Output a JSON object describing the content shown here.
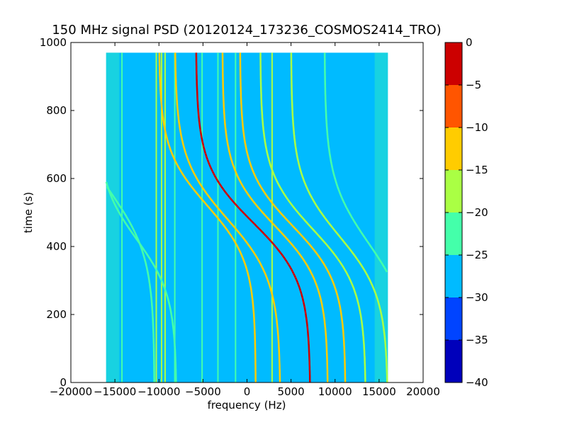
{
  "chart_data": {
    "type": "heatmap",
    "title": "150 MHz signal PSD (20120124_173236_COSMOS2414_TRO)",
    "xlabel": "frequency (Hz)",
    "ylabel": "time (s)",
    "xlim": [
      -20000,
      20000
    ],
    "ylim": [
      0,
      1000
    ],
    "xticks": [
      -20000,
      -15000,
      -10000,
      -5000,
      0,
      5000,
      10000,
      15000,
      20000
    ],
    "xtick_labels": [
      "−20000",
      "−15000",
      "−10000",
      "−5000",
      "0",
      "5000",
      "10000",
      "15000",
      "20000"
    ],
    "yticks": [
      0,
      200,
      400,
      600,
      800,
      1000
    ],
    "ytick_labels": [
      "0",
      "200",
      "400",
      "600",
      "800",
      "1000"
    ],
    "data_extent": {
      "x": [
        -16000,
        16000
      ],
      "y": [
        0,
        970
      ]
    },
    "background_level_db": -28,
    "colorbar": {
      "levels": [
        -40,
        -35,
        -30,
        -25,
        -20,
        -15,
        -10,
        -5,
        0
      ],
      "tick_labels": [
        "−40",
        "−35",
        "−30",
        "−25",
        "−20",
        "−15",
        "−10",
        "−5",
        "0"
      ],
      "colors": [
        "#0000bb",
        "#0044ff",
        "#00bbff",
        "#44ffaa",
        "#aaff44",
        "#ffcc00",
        "#ff5500",
        "#cc0000"
      ]
    },
    "vertical_lines": [
      {
        "x": -14200,
        "db": -22
      },
      {
        "x": -10300,
        "db": -18
      },
      {
        "x": -9700,
        "db": -18
      },
      {
        "x": -9300,
        "db": -20
      },
      {
        "x": -8200,
        "db": -24
      },
      {
        "x": -5100,
        "db": -22
      },
      {
        "x": -3300,
        "db": -22
      },
      {
        "x": -1300,
        "db": -22
      },
      {
        "x": 2850,
        "db": -18
      }
    ],
    "doppler_tracks": [
      {
        "x_center": -15500,
        "t_center": 560,
        "span_hz": 10000,
        "t_width": 380,
        "db": -21
      },
      {
        "x_center": -12500,
        "t_center": 420,
        "span_hz": 9000,
        "t_width": 330,
        "db": -22
      },
      {
        "x_center": -4500,
        "t_center": 520,
        "span_hz": 11000,
        "t_width": 330,
        "db": -14
      },
      {
        "x_center": -2200,
        "t_center": 480,
        "span_hz": 12000,
        "t_width": 360,
        "db": -13
      },
      {
        "x_center": 700,
        "t_center": 470,
        "span_hz": 13000,
        "t_width": 340,
        "db": -5
      },
      {
        "x_center": 3200,
        "t_center": 460,
        "span_hz": 12000,
        "t_width": 330,
        "db": -12
      },
      {
        "x_center": 5200,
        "t_center": 460,
        "span_hz": 12000,
        "t_width": 330,
        "db": -14
      },
      {
        "x_center": 7500,
        "t_center": 450,
        "span_hz": 12000,
        "t_width": 340,
        "db": -18
      },
      {
        "x_center": 10500,
        "t_center": 430,
        "span_hz": 11000,
        "t_width": 350,
        "db": -20
      },
      {
        "x_center": 13800,
        "t_center": 410,
        "span_hz": 10000,
        "t_width": 380,
        "db": -21
      }
    ]
  }
}
